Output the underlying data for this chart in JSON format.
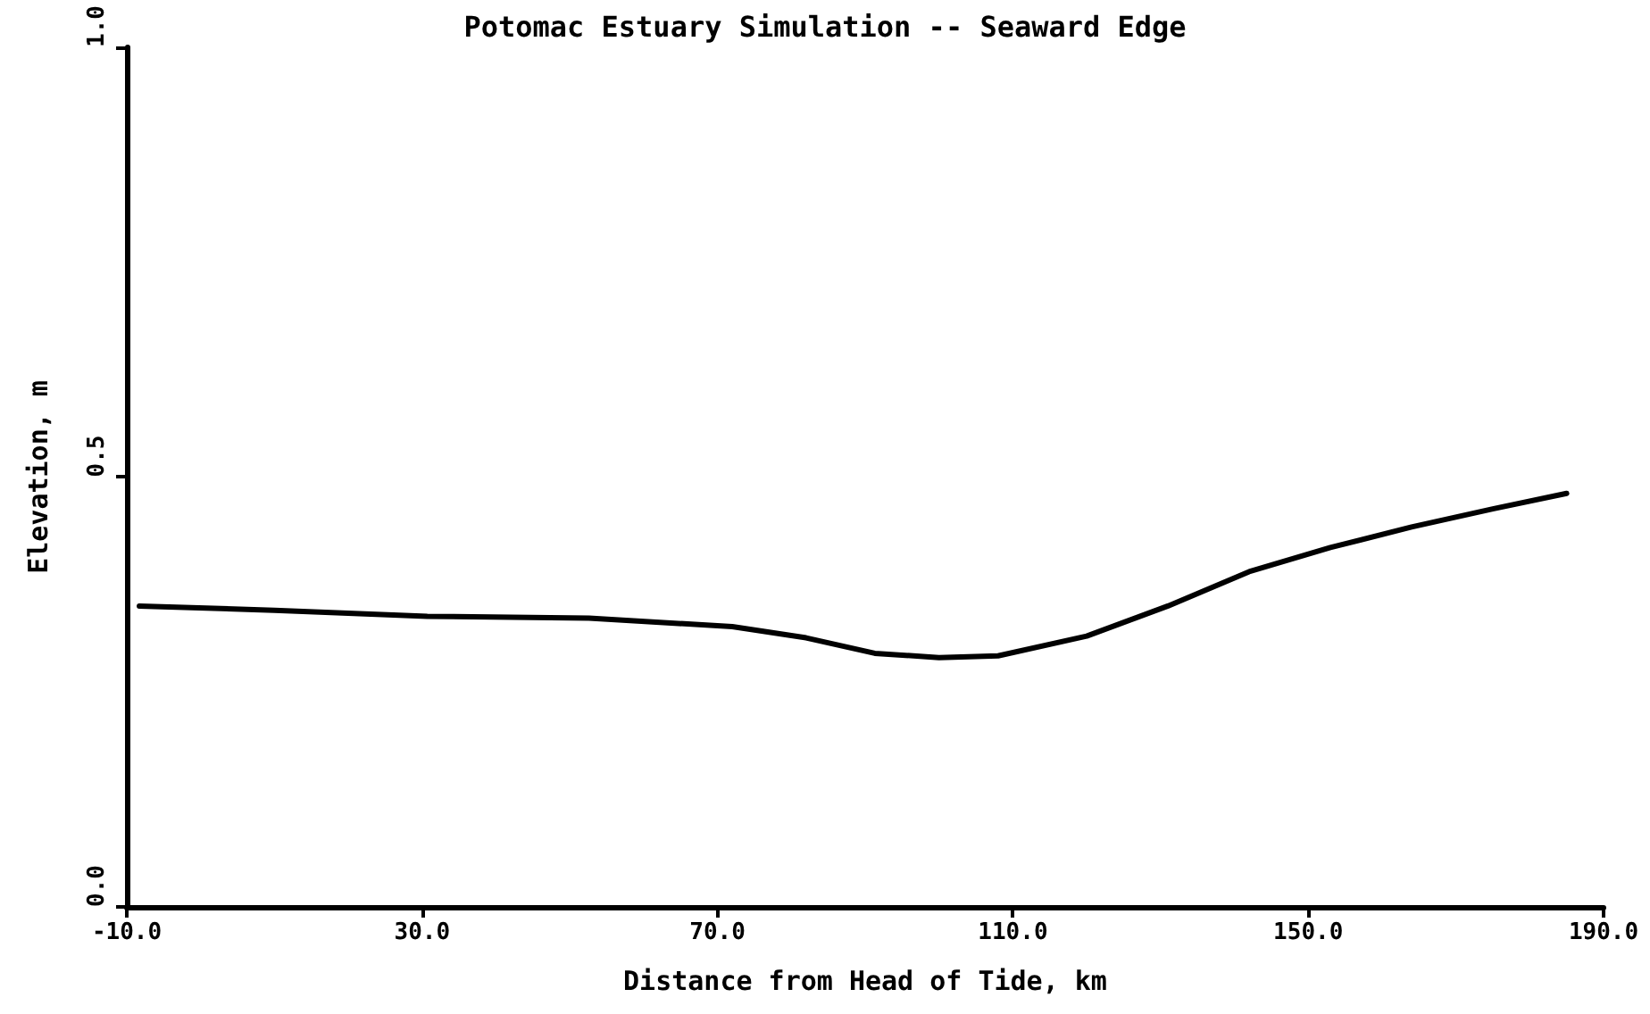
{
  "chart_data": {
    "type": "line",
    "title": "Potomac Estuary Simulation -- Seaward Edge",
    "xlabel": "Distance from Head of Tide, km",
    "ylabel": "Elevation, m",
    "series": [
      {
        "color": "#000000",
        "x": [
          -8.3,
          10,
          30.7,
          52.6,
          72,
          82,
          91.3,
          100,
          108,
          120,
          131,
          142,
          153,
          164,
          175,
          185
        ],
        "values": [
          0.35,
          0.345,
          0.338,
          0.336,
          0.326,
          0.313,
          0.295,
          0.29,
          0.292,
          0.315,
          0.35,
          0.39,
          0.418,
          0.442,
          0.463,
          0.481
        ]
      }
    ],
    "xlim": [
      -10,
      190
    ],
    "xticks": [
      {
        "value": -10,
        "label": "-10.0"
      },
      {
        "value": 30,
        "label": "30.0"
      },
      {
        "value": 70,
        "label": "70.0"
      },
      {
        "value": 110,
        "label": "110.0"
      },
      {
        "value": 150,
        "label": "150.0"
      },
      {
        "value": 190,
        "label": "190.0"
      }
    ],
    "ylim": [
      0,
      1
    ],
    "yticks": [
      {
        "value": 0,
        "label": "0.0"
      },
      {
        "value": 0.5,
        "label": "0.5"
      },
      {
        "value": 1,
        "label": "1.0"
      }
    ],
    "grid": false,
    "marker": "none",
    "line_style": "solid"
  }
}
